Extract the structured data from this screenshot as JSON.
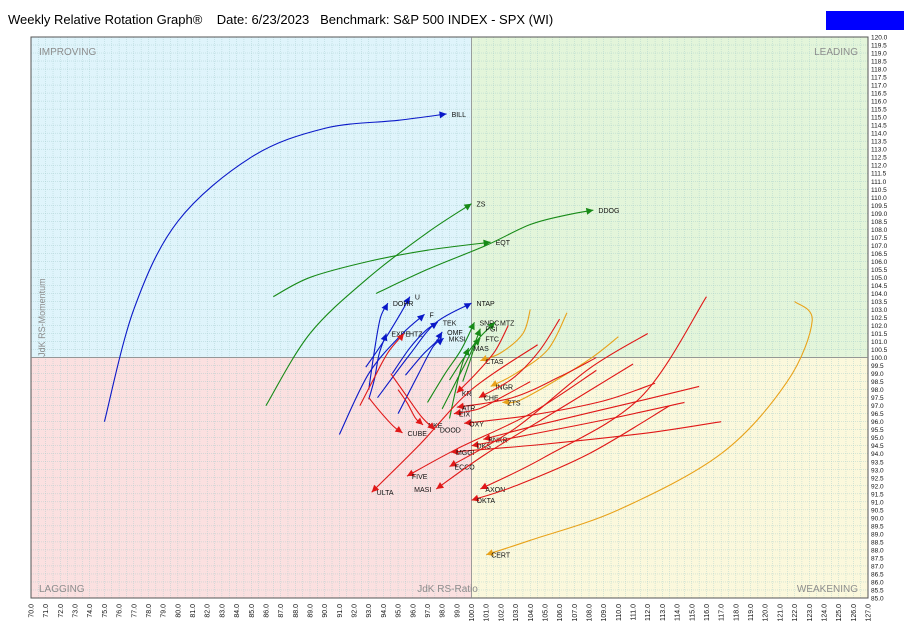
{
  "title": "Weekly Relative Rotation Graph®    Date: 6/23/2023   Benchmark: S&P 500 INDEX - SPX (WI)",
  "colors": {
    "improving": "#dff4fb",
    "leading": "#e3f5da",
    "lagging": "#fbe0e0",
    "weakening": "#fbf8dc",
    "grid": "#9fc9c9",
    "blue": "#0a18c8",
    "green": "#178a17",
    "red": "#e01818",
    "orange": "#e8a21a",
    "legend_box": "#0000ff"
  },
  "quadrants": {
    "improving": "IMPROVING",
    "leading": "LEADING",
    "lagging": "LAGGING",
    "weakening": "WEAKENING"
  },
  "chart_data": {
    "type": "scatter",
    "xlabel": "JdK RS-Ratio",
    "ylabel": "JdK RS-Momentum",
    "xlim": [
      70.0,
      127.0
    ],
    "ylim": [
      85.0,
      120.0
    ],
    "center": [
      100.0,
      100.0
    ],
    "grid": true,
    "xticks": [
      "70.0",
      "71.0",
      "72.0",
      "73.0",
      "74.0",
      "75.0",
      "76.0",
      "77.0",
      "78.0",
      "79.0",
      "80.0",
      "81.0",
      "82.0",
      "83.0",
      "84.0",
      "85.0",
      "86.0",
      "87.0",
      "88.0",
      "89.0",
      "90.0",
      "91.0",
      "92.0",
      "93.0",
      "94.0",
      "95.0",
      "96.0",
      "97.0",
      "98.0",
      "99.0",
      "100.0",
      "101.0",
      "102.0",
      "103.0",
      "104.0",
      "105.0",
      "106.0",
      "107.0",
      "108.0",
      "109.0",
      "110.0",
      "111.0",
      "112.0",
      "113.0",
      "114.0",
      "115.0",
      "116.0",
      "117.0",
      "118.0",
      "119.0",
      "120.0",
      "121.0",
      "122.0",
      "123.0",
      "124.0",
      "125.0",
      "126.0",
      "127.0"
    ],
    "yticks": [
      "85.0",
      "85.5",
      "86.0",
      "86.5",
      "87.0",
      "87.5",
      "88.0",
      "88.5",
      "89.0",
      "89.5",
      "90.0",
      "90.5",
      "91.0",
      "91.5",
      "92.0",
      "92.5",
      "93.0",
      "93.5",
      "94.0",
      "94.5",
      "95.0",
      "95.5",
      "96.0",
      "96.5",
      "97.0",
      "97.5",
      "98.0",
      "98.5",
      "99.0",
      "99.5",
      "100.0",
      "100.5",
      "101.0",
      "101.5",
      "102.0",
      "102.5",
      "103.0",
      "103.5",
      "104.0",
      "104.5",
      "105.0",
      "105.5",
      "106.0",
      "106.5",
      "107.0",
      "107.5",
      "108.0",
      "108.5",
      "109.0",
      "109.5",
      "110.0",
      "110.5",
      "111.0",
      "111.5",
      "112.0",
      "112.5",
      "113.0",
      "113.5",
      "114.0",
      "114.5",
      "115.0",
      "115.5",
      "116.0",
      "116.5",
      "117.0",
      "117.5",
      "118.0",
      "118.5",
      "119.0",
      "119.5",
      "120.0"
    ],
    "series": [
      {
        "name": "BILL",
        "color": "blue",
        "label_side": "right",
        "trail": [
          [
            75.0,
            96.0
          ],
          [
            77.0,
            103.0
          ],
          [
            80.0,
            108.5
          ],
          [
            85.0,
            112.5
          ],
          [
            90.0,
            114.3
          ],
          [
            95.0,
            114.8
          ],
          [
            98.3,
            115.2
          ]
        ]
      },
      {
        "name": "U",
        "color": "blue",
        "label_side": "right",
        "trail": [
          [
            92.8,
            99.4
          ],
          [
            94.0,
            101.0
          ],
          [
            95.2,
            102.8
          ],
          [
            95.8,
            103.8
          ]
        ]
      },
      {
        "name": "DOHR",
        "color": "blue",
        "label_side": "right",
        "trail": [
          [
            93.0,
            98.0
          ],
          [
            93.4,
            100.5
          ],
          [
            93.8,
            102.5
          ],
          [
            94.3,
            103.4
          ]
        ]
      },
      {
        "name": "F",
        "color": "blue",
        "label_side": "right",
        "trail": [
          [
            91.0,
            95.2
          ],
          [
            93.0,
            99.0
          ],
          [
            95.2,
            101.4
          ],
          [
            96.8,
            102.7
          ]
        ]
      },
      {
        "name": "EXPE",
        "color": "blue",
        "label_side": "right",
        "trail": [
          [
            93.0,
            97.4
          ],
          [
            93.4,
            98.7
          ],
          [
            93.7,
            100.2
          ],
          [
            94.2,
            101.5
          ]
        ]
      },
      {
        "name": "HTZ",
        "color": "red",
        "label_side": "right",
        "trail": [
          [
            92.4,
            97.0
          ],
          [
            93.3,
            98.6
          ],
          [
            94.3,
            100.3
          ],
          [
            95.4,
            101.5
          ]
        ]
      },
      {
        "name": "TEK",
        "color": "blue",
        "label_side": "right",
        "trail": [
          [
            94.6,
            99.0
          ],
          [
            95.8,
            100.6
          ],
          [
            96.9,
            101.7
          ],
          [
            97.7,
            102.2
          ]
        ]
      },
      {
        "name": "OMF",
        "color": "blue",
        "label_side": "right",
        "trail": [
          [
            95.5,
            98.9
          ],
          [
            96.7,
            100.2
          ],
          [
            97.6,
            101.0
          ],
          [
            98.0,
            101.6
          ]
        ]
      },
      {
        "name": "MKSI",
        "color": "blue",
        "label_side": "right",
        "trail": [
          [
            95.0,
            96.5
          ],
          [
            96.4,
            99.0
          ],
          [
            97.4,
            100.7
          ],
          [
            98.1,
            101.2
          ]
        ]
      },
      {
        "name": "NTAP",
        "color": "blue",
        "label_side": "right",
        "trail": [
          [
            93.6,
            97.5
          ],
          [
            95.8,
            100.2
          ],
          [
            97.6,
            102.2
          ],
          [
            100.0,
            103.4
          ]
        ]
      },
      {
        "name": "ZS",
        "color": "green",
        "label_side": "right",
        "trail": [
          [
            86.0,
            97.0
          ],
          [
            89.0,
            101.5
          ],
          [
            93.0,
            105.0
          ],
          [
            97.0,
            107.8
          ],
          [
            100.0,
            109.6
          ]
        ]
      },
      {
        "name": "EQT",
        "color": "green",
        "label_side": "right",
        "trail": [
          [
            86.5,
            103.8
          ],
          [
            89.0,
            105.0
          ],
          [
            93.0,
            106.0
          ],
          [
            97.0,
            106.7
          ],
          [
            101.3,
            107.2
          ]
        ]
      },
      {
        "name": "DDOG",
        "color": "green",
        "label_side": "right",
        "trail": [
          [
            93.5,
            104.0
          ],
          [
            97.0,
            105.5
          ],
          [
            101.0,
            107.0
          ],
          [
            104.0,
            108.3
          ],
          [
            106.5,
            108.9
          ],
          [
            108.3,
            109.2
          ]
        ]
      },
      {
        "name": "SNRC",
        "color": "green",
        "label_side": "right",
        "trail": [
          [
            97.0,
            97.2
          ],
          [
            98.2,
            99.0
          ],
          [
            99.3,
            100.5
          ],
          [
            100.2,
            102.2
          ]
        ]
      },
      {
        "name": "MTZ",
        "color": "green",
        "label_side": "right",
        "trail": [
          [
            98.5,
            98.6
          ],
          [
            99.5,
            100.0
          ],
          [
            100.6,
            101.3
          ],
          [
            101.6,
            102.2
          ]
        ]
      },
      {
        "name": "PGI",
        "color": "green",
        "label_side": "right",
        "trail": [
          [
            98.0,
            96.8
          ],
          [
            99.0,
            98.6
          ],
          [
            100.0,
            100.4
          ],
          [
            100.6,
            101.8
          ]
        ]
      },
      {
        "name": "FTC",
        "color": "green",
        "label_side": "right",
        "trail": [
          [
            99.4,
            98.5
          ],
          [
            99.9,
            99.8
          ],
          [
            100.3,
            100.9
          ],
          [
            100.6,
            101.2
          ]
        ]
      },
      {
        "name": "MAS",
        "color": "green",
        "label_side": "right",
        "trail": [
          [
            98.5,
            96.2
          ],
          [
            99.0,
            98.3
          ],
          [
            99.4,
            99.7
          ],
          [
            99.8,
            100.6
          ]
        ]
      },
      {
        "name": "CTAS",
        "color": "orange",
        "label_side": "right",
        "trail": [
          [
            104.0,
            103.0
          ],
          [
            103.5,
            101.5
          ],
          [
            102.0,
            100.3
          ],
          [
            100.6,
            99.8
          ]
        ]
      },
      {
        "name": "INGR",
        "color": "orange",
        "label_side": "right",
        "trail": [
          [
            106.5,
            102.8
          ],
          [
            105.2,
            100.5
          ],
          [
            103.0,
            99.0
          ],
          [
            101.3,
            98.2
          ]
        ]
      },
      {
        "name": "KR",
        "color": "red",
        "label_side": "right",
        "trail": [
          [
            102.5,
            102.0
          ],
          [
            101.6,
            100.4
          ],
          [
            100.3,
            99.0
          ],
          [
            99.0,
            97.8
          ]
        ]
      },
      {
        "name": "CHE",
        "color": "red",
        "label_side": "right",
        "trail": [
          [
            106.0,
            102.4
          ],
          [
            104.6,
            100.4
          ],
          [
            102.8,
            98.7
          ],
          [
            100.5,
            97.5
          ]
        ]
      },
      {
        "name": "ZTS",
        "color": "orange",
        "label_side": "right",
        "trail": [
          [
            110.0,
            101.3
          ],
          [
            108.2,
            100.0
          ],
          [
            105.6,
            98.5
          ],
          [
            103.2,
            97.3
          ],
          [
            102.1,
            97.2
          ]
        ]
      },
      {
        "name": "ATR",
        "color": "red",
        "label_side": "right",
        "trail": [
          [
            108.5,
            100.0
          ],
          [
            106.0,
            98.8
          ],
          [
            102.8,
            97.5
          ],
          [
            99.0,
            96.9
          ]
        ]
      },
      {
        "name": "EIX",
        "color": "red",
        "label_side": "right",
        "trail": [
          [
            104.0,
            98.5
          ],
          [
            102.0,
            97.5
          ],
          [
            100.5,
            96.8
          ],
          [
            98.8,
            96.5
          ]
        ]
      },
      {
        "name": "OXY",
        "color": "red",
        "label_side": "right",
        "trail": [
          [
            112.5,
            98.4
          ],
          [
            109.0,
            97.3
          ],
          [
            104.0,
            96.4
          ],
          [
            99.5,
            95.9
          ]
        ]
      },
      {
        "name": "NKE",
        "color": "red",
        "label_side": "right",
        "trail": [
          [
            95.0,
            98.0
          ],
          [
            95.6,
            97.2
          ],
          [
            96.2,
            96.2
          ],
          [
            96.7,
            95.8
          ]
        ]
      },
      {
        "name": "CUBE",
        "color": "red",
        "label_side": "right",
        "trail": [
          [
            93.0,
            97.5
          ],
          [
            93.8,
            96.6
          ],
          [
            94.7,
            95.7
          ],
          [
            95.3,
            95.3
          ]
        ]
      },
      {
        "name": "DOOD",
        "color": "red",
        "label_side": "right",
        "trail": [
          [
            94.5,
            99.0
          ],
          [
            95.5,
            97.7
          ],
          [
            96.6,
            96.3
          ],
          [
            97.5,
            95.5
          ]
        ]
      },
      {
        "name": "BNKR",
        "color": "red",
        "label_side": "right",
        "trail": [
          [
            115.5,
            98.2
          ],
          [
            111.0,
            97.2
          ],
          [
            105.0,
            95.9
          ],
          [
            100.8,
            94.9
          ]
        ]
      },
      {
        "name": "DKS",
        "color": "red",
        "label_side": "right",
        "trail": [
          [
            114.5,
            97.2
          ],
          [
            109.5,
            96.2
          ],
          [
            104.0,
            95.2
          ],
          [
            100.0,
            94.5
          ]
        ]
      },
      {
        "name": "MGGI",
        "color": "red",
        "label_side": "right",
        "trail": [
          [
            117.0,
            96.0
          ],
          [
            112.0,
            95.3
          ],
          [
            105.0,
            94.6
          ],
          [
            98.6,
            94.1
          ]
        ]
      },
      {
        "name": "ECCO",
        "color": "red",
        "label_side": "right",
        "trail": [
          [
            112.0,
            101.5
          ],
          [
            108.0,
            99.3
          ],
          [
            103.0,
            95.6
          ],
          [
            98.5,
            93.2
          ]
        ]
      },
      {
        "name": "FIVE",
        "color": "red",
        "label_side": "right",
        "trail": [
          [
            108.5,
            99.2
          ],
          [
            104.0,
            96.5
          ],
          [
            99.0,
            94.3
          ],
          [
            95.6,
            92.6
          ]
        ]
      },
      {
        "name": "MASI",
        "color": "red",
        "label_side": "left",
        "trail": [
          [
            111.0,
            99.6
          ],
          [
            106.0,
            96.8
          ],
          [
            101.0,
            94.0
          ],
          [
            97.6,
            91.8
          ]
        ]
      },
      {
        "name": "AXON",
        "color": "red",
        "label_side": "right",
        "trail": [
          [
            116.0,
            103.8
          ],
          [
            111.5,
            97.5
          ],
          [
            105.0,
            93.8
          ],
          [
            100.6,
            91.8
          ]
        ]
      },
      {
        "name": "OKTA",
        "color": "red",
        "label_side": "right",
        "trail": [
          [
            113.5,
            97.0
          ],
          [
            108.0,
            94.0
          ],
          [
            103.0,
            92.0
          ],
          [
            100.0,
            91.1
          ]
        ]
      },
      {
        "name": "ULTA",
        "color": "red",
        "label_side": "right",
        "trail": [
          [
            104.5,
            100.8
          ],
          [
            100.0,
            98.0
          ],
          [
            96.5,
            94.6
          ],
          [
            93.2,
            91.6
          ]
        ]
      },
      {
        "name": "CERT",
        "color": "orange",
        "label_side": "right",
        "trail": [
          [
            122.0,
            103.5
          ],
          [
            123.2,
            102.3
          ],
          [
            121.5,
            98.5
          ],
          [
            117.0,
            94.0
          ],
          [
            110.0,
            90.5
          ],
          [
            104.0,
            88.6
          ],
          [
            101.0,
            87.7
          ]
        ]
      }
    ]
  }
}
